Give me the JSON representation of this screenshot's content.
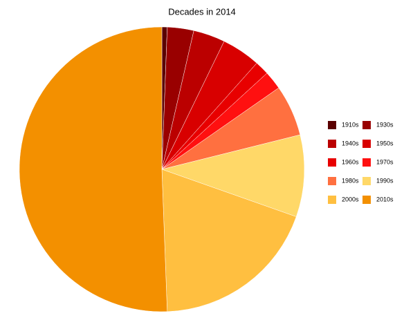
{
  "chart_data": {
    "type": "pie",
    "title": "Decades in 2014",
    "categories": [
      "1910s",
      "1930s",
      "1940s",
      "1950s",
      "1960s",
      "1970s",
      "1980s",
      "1990s",
      "2000s",
      "2010s"
    ],
    "values": [
      0.6,
      3,
      3.6,
      4.4,
      1.6,
      2.1,
      5.8,
      9.3,
      19,
      50.6
    ],
    "colors": [
      "#5a0000",
      "#990000",
      "#bb0000",
      "#d80000",
      "#e80000",
      "#ff1010",
      "#ff7040",
      "#ffd868",
      "#ffbf40",
      "#f39000"
    ]
  }
}
